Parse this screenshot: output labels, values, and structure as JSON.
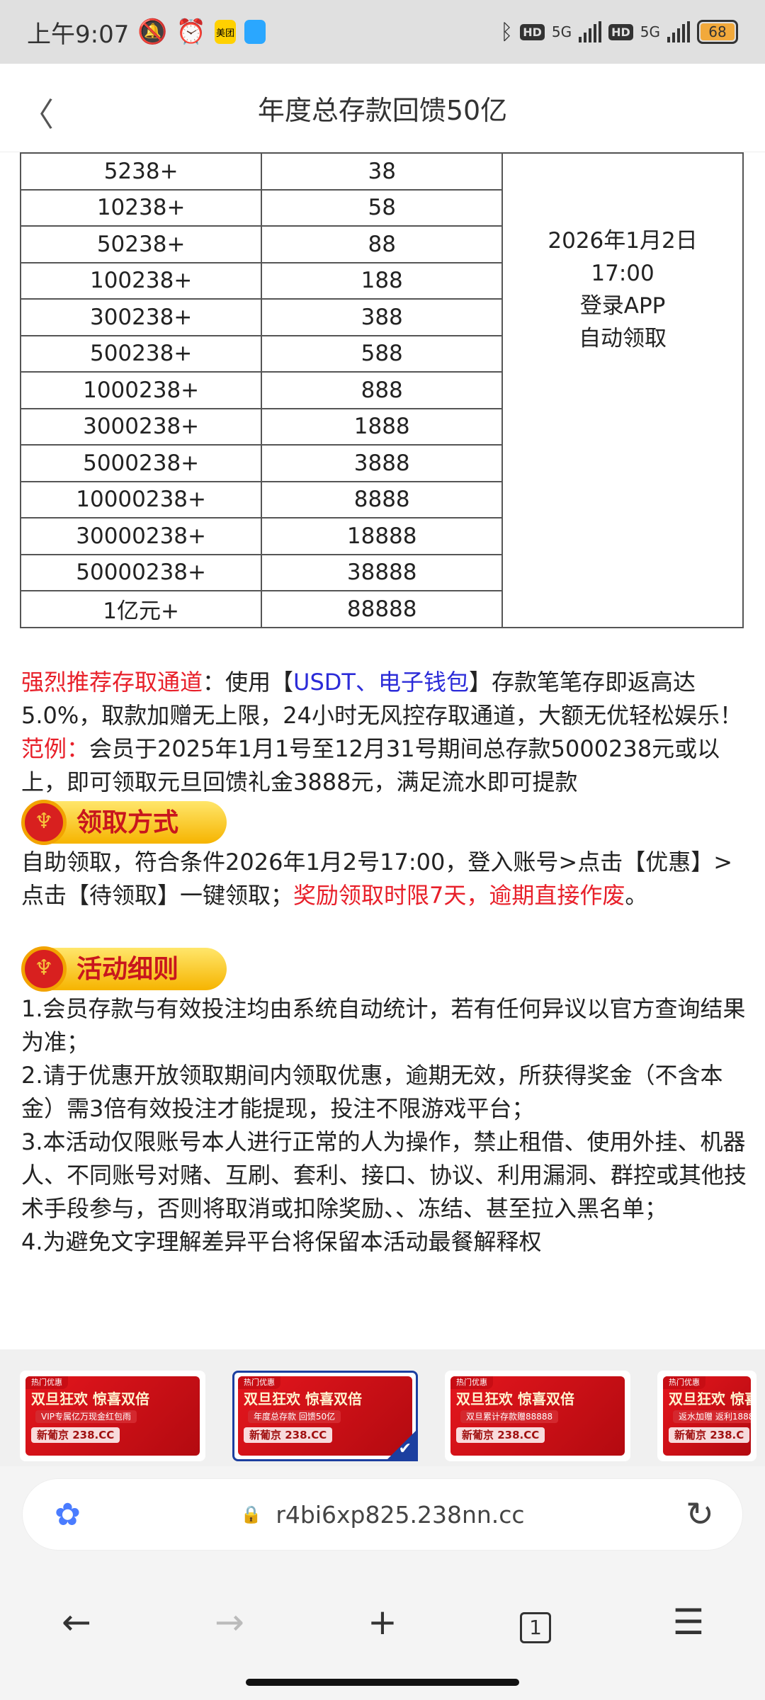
{
  "status_bar": {
    "time": "上午9:07",
    "app_icons": [
      "mute-bell-icon",
      "alarm-icon",
      "meituan-app-icon",
      "chat-app-icon"
    ],
    "app_label_meituan": "美团",
    "network": "5G",
    "battery": "68"
  },
  "header": {
    "title": "年度总存款回馈50亿",
    "back_icon": "chevron-left-icon"
  },
  "table": {
    "rows": [
      [
        "5238+",
        "38"
      ],
      [
        "10238+",
        "58"
      ],
      [
        "50238+",
        "88"
      ],
      [
        "100238+",
        "188"
      ],
      [
        "300238+",
        "388"
      ],
      [
        "500238+",
        "588"
      ],
      [
        "1000238+",
        "888"
      ],
      [
        "3000238+",
        "1888"
      ],
      [
        "5000238+",
        "3888"
      ],
      [
        "10000238+",
        "8888"
      ],
      [
        "30000238+",
        "18888"
      ],
      [
        "50000238+",
        "38888"
      ],
      [
        "1亿元+",
        "88888"
      ]
    ],
    "merged_cell": [
      "2026年1月2日",
      "17:00",
      "登录APP",
      "自动领取"
    ]
  },
  "recommend": {
    "label": "强烈推荐存取通道",
    "text1": "：使用【",
    "highlight": "USDT、电子钱包",
    "text2": "】存款笔笔存即返高达5.0%，取款加赠无上限，24小时无风控存取通道，大额无优轻松娱乐！"
  },
  "example": {
    "label": "范例：",
    "text": "会员于2025年1月1号至12月31号期间总存款5000238元或以上，即可领取元旦回馈礼金3888元，满足流水即可提款"
  },
  "claim": {
    "heading": "领取方式",
    "text": "自助领取，符合条件2026年1月2号17:00，登入账号>点击【优惠】>点击【待领取】一键领取；",
    "warning": "奖励领取时限7天，逾期直接作废",
    "end": "。"
  },
  "rules": {
    "heading": "活动细则",
    "items": [
      "1.会员存款与有效投注均由系统自动统计，若有任何异议以官方查询结果为准；",
      "2.请于优惠开放领取期间内领取优惠，逾期无效，所获得奖金（不含本金）需3倍有效投注才能提现，投注不限游戏平台；",
      "3.本活动仅限账号本人进行正常的人为操作，禁止租借、使用外挂、机器人、不同账号对赌、互刷、套利、接口、协议、利用漏洞、群控或其他技术手段参与，否则将取消或扣除奖励、、冻结、甚至拉入黑名单；",
      "4.为避免文字理解差异平台将保留本活动最餐解释权"
    ]
  },
  "thumbnails": [
    {
      "tag": "热门优惠",
      "headline": "双旦狂欢 惊喜双倍",
      "sub": "VIP专属亿万现金红包雨",
      "brand": "新葡京 238.CC",
      "selected": false
    },
    {
      "tag": "热门优惠",
      "headline": "双旦狂欢 惊喜双倍",
      "sub": "年度总存款 回馈50亿",
      "brand": "新葡京 238.CC",
      "selected": true
    },
    {
      "tag": "热门优惠",
      "headline": "双旦狂欢 惊喜双倍",
      "sub": "双旦累计存款赠88888",
      "brand": "新葡京 238.CC",
      "selected": false
    },
    {
      "tag": "热门优惠",
      "headline": "双旦狂欢 惊喜",
      "sub": "返水加赠 返利1888",
      "brand": "新葡京 238.C",
      "selected": false
    }
  ],
  "browser": {
    "url": "r4bi6xp825.238nn.cc",
    "tab_count": "1"
  },
  "colors": {
    "red": "#e8202a",
    "blue": "#2b2bd8",
    "selected_border": "#1c3fa0",
    "badge_yellow": "#f6b400"
  }
}
